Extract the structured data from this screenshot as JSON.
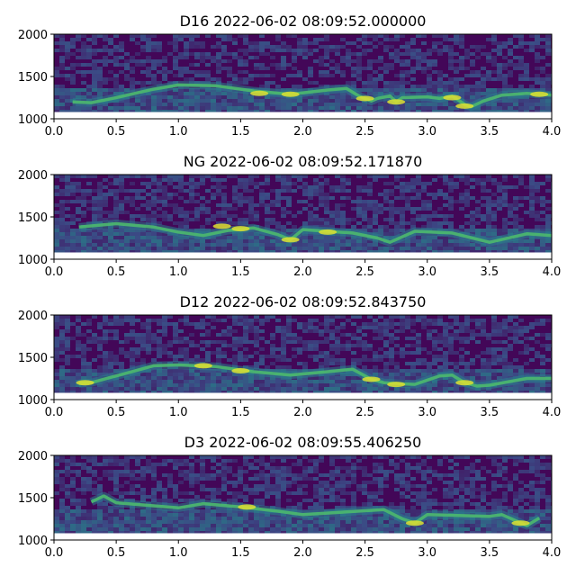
{
  "chart_data": [
    {
      "type": "heatmap",
      "title": "D16 2022-06-02 08:09:52.000000",
      "xlabel": "",
      "ylabel": "",
      "xlim": [
        0.0,
        4.0
      ],
      "ylim": [
        1000,
        2000
      ],
      "xticks": [
        "0.0",
        "0.5",
        "1.0",
        "1.5",
        "2.0",
        "2.5",
        "3.0",
        "3.5",
        "4.0"
      ],
      "yticks": [
        "1000",
        "1500",
        "2000"
      ],
      "data_extent_y": [
        1080,
        2000
      ],
      "colormap": "viridis",
      "ridge": {
        "x": [
          0.15,
          0.3,
          0.5,
          0.8,
          1.0,
          1.3,
          1.6,
          1.9,
          2.2,
          2.35,
          2.45,
          2.55,
          2.6,
          2.7,
          2.75,
          2.8,
          3.0,
          3.1,
          3.2,
          3.3,
          3.35,
          3.45,
          3.6,
          3.8,
          4.0
        ],
        "y": [
          1200,
          1190,
          1250,
          1350,
          1400,
          1390,
          1330,
          1290,
          1340,
          1360,
          1270,
          1210,
          1240,
          1270,
          1200,
          1250,
          1260,
          1240,
          1270,
          1170,
          1140,
          1210,
          1280,
          1300,
          1280
        ]
      },
      "bright": [
        [
          1.65,
          1300
        ],
        [
          1.9,
          1290
        ],
        [
          2.5,
          1240
        ],
        [
          2.75,
          1200
        ],
        [
          3.2,
          1250
        ],
        [
          3.3,
          1150
        ],
        [
          3.9,
          1290
        ]
      ]
    },
    {
      "type": "heatmap",
      "title": "NG 2022-06-02 08:09:52.171870",
      "xlabel": "",
      "ylabel": "",
      "xlim": [
        0.0,
        4.0
      ],
      "ylim": [
        1000,
        2000
      ],
      "xticks": [
        "0.0",
        "0.5",
        "1.0",
        "1.5",
        "2.0",
        "2.5",
        "3.0",
        "3.5",
        "4.0"
      ],
      "yticks": [
        "1000",
        "1500",
        "2000"
      ],
      "data_extent_y": [
        1080,
        2000
      ],
      "colormap": "viridis",
      "ridge": {
        "x": [
          0.2,
          0.5,
          0.8,
          1.0,
          1.2,
          1.4,
          1.6,
          1.8,
          1.9,
          2.0,
          2.2,
          2.4,
          2.6,
          2.7,
          2.9,
          3.2,
          3.5,
          3.8,
          4.0
        ],
        "y": [
          1380,
          1420,
          1380,
          1320,
          1280,
          1340,
          1370,
          1290,
          1230,
          1350,
          1330,
          1310,
          1250,
          1200,
          1330,
          1310,
          1200,
          1300,
          1280
        ]
      },
      "bright": [
        [
          1.35,
          1390
        ],
        [
          1.5,
          1360
        ],
        [
          1.9,
          1230
        ],
        [
          2.2,
          1320
        ]
      ]
    },
    {
      "type": "heatmap",
      "title": "D12 2022-06-02 08:09:52.843750",
      "xlabel": "",
      "ylabel": "",
      "xlim": [
        0.0,
        4.0
      ],
      "ylim": [
        1000,
        2000
      ],
      "xticks": [
        "0.0",
        "0.5",
        "1.0",
        "1.5",
        "2.0",
        "2.5",
        "3.0",
        "3.5",
        "4.0"
      ],
      "yticks": [
        "1000",
        "1500",
        "2000"
      ],
      "data_extent_y": [
        1080,
        2000
      ],
      "colormap": "viridis",
      "ridge": {
        "x": [
          0.2,
          0.3,
          0.8,
          1.0,
          1.3,
          1.6,
          1.9,
          2.2,
          2.4,
          2.55,
          2.65,
          2.75,
          2.9,
          3.1,
          3.2,
          3.3,
          3.4,
          3.5,
          3.8,
          4.0
        ],
        "y": [
          1190,
          1200,
          1400,
          1410,
          1390,
          1330,
          1290,
          1330,
          1360,
          1240,
          1200,
          1190,
          1180,
          1280,
          1290,
          1200,
          1160,
          1170,
          1250,
          1250
        ]
      },
      "bright": [
        [
          0.25,
          1200
        ],
        [
          1.2,
          1400
        ],
        [
          1.5,
          1340
        ],
        [
          2.55,
          1240
        ],
        [
          2.75,
          1180
        ],
        [
          3.3,
          1200
        ]
      ]
    },
    {
      "type": "heatmap",
      "title": "D3 2022-06-02 08:09:55.406250",
      "xlabel": "",
      "ylabel": "",
      "xlim": [
        0.0,
        4.0
      ],
      "ylim": [
        1000,
        2000
      ],
      "xticks": [
        "0.0",
        "0.5",
        "1.0",
        "1.5",
        "2.0",
        "2.5",
        "3.0",
        "3.5",
        "4.0"
      ],
      "yticks": [
        "1000",
        "1500",
        "2000"
      ],
      "data_extent_y": [
        1080,
        2000
      ],
      "colormap": "viridis",
      "ridge": {
        "x": [
          0.3,
          0.4,
          0.5,
          1.0,
          1.2,
          1.5,
          1.8,
          2.0,
          2.65,
          2.8,
          2.9,
          3.0,
          3.5,
          3.6,
          3.8,
          3.9
        ],
        "y": [
          1450,
          1520,
          1440,
          1380,
          1430,
          1390,
          1340,
          1300,
          1360,
          1250,
          1200,
          1300,
          1280,
          1300,
          1170,
          1260
        ]
      },
      "bright": [
        [
          1.55,
          1390
        ],
        [
          2.9,
          1200
        ],
        [
          3.75,
          1200
        ]
      ]
    }
  ]
}
